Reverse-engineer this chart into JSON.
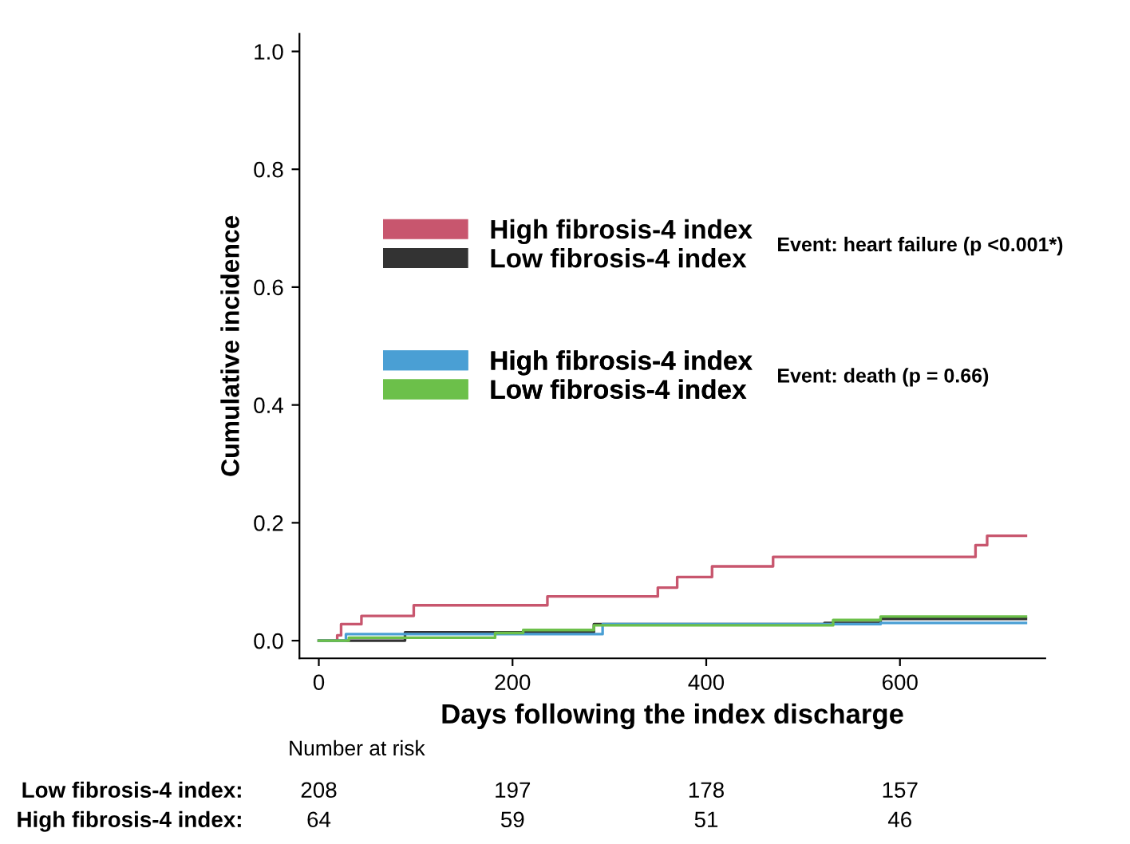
{
  "chart_data": {
    "type": "step",
    "xlabel": "Days following the index discharge",
    "ylabel": "Cumulative incidence",
    "xlim": [
      -20,
      750
    ],
    "ylim": [
      -0.03,
      1.03
    ],
    "xticks": [
      0,
      200,
      400,
      600
    ],
    "yticks": [
      {
        "value": 0,
        "label": "0.0"
      },
      {
        "value": 0.2,
        "label": "0.2"
      },
      {
        "value": 0.4,
        "label": "0.4"
      },
      {
        "value": 0.6,
        "label": "0.6"
      },
      {
        "value": 0.8,
        "label": "0.8"
      },
      {
        "value": 1,
        "label": "1.0"
      }
    ],
    "series": [
      {
        "name": "High fibrosis-4 index",
        "color": "#c8566e",
        "x": [
          0,
          19,
          23,
          44,
          98,
          236,
          350,
          370,
          406,
          469,
          678,
          690,
          730
        ],
        "values": [
          0,
          0.009,
          0.028,
          0.042,
          0.06,
          0.075,
          0.09,
          0.108,
          0.126,
          0.142,
          0.162,
          0.178,
          0.178
        ]
      },
      {
        "name": "Low fibrosis-4 index",
        "color": "#333333",
        "x": [
          0,
          89,
          284,
          522,
          580,
          730
        ],
        "values": [
          0,
          0.014,
          0.028,
          0.03,
          0.037,
          0.037
        ]
      },
      {
        "name": "High fibrosis-4 index",
        "color": "#4a9fd4",
        "x": [
          0,
          28,
          293,
          580,
          730
        ],
        "values": [
          0,
          0.011,
          0.028,
          0.03,
          0.03
        ]
      },
      {
        "name": "Low fibrosis-4 index",
        "color": "#6cc04a",
        "x": [
          0,
          31,
          182,
          211,
          284,
          531,
          580,
          730
        ],
        "values": [
          0,
          0.005,
          0.013,
          0.018,
          0.026,
          0.035,
          0.041,
          0.041
        ]
      }
    ],
    "legend": "left",
    "grid": false,
    "line_style": "solid",
    "marker": "none",
    "annotations": [
      "Event: heart failure (p <0.001*)",
      "Event: death (p = 0.66)",
      "Number at risk",
      "Low fibrosis-4 index:",
      "208",
      "197",
      "178",
      "157",
      "High fibrosis-4 index:",
      "64",
      "59",
      "51",
      "46"
    ]
  }
}
